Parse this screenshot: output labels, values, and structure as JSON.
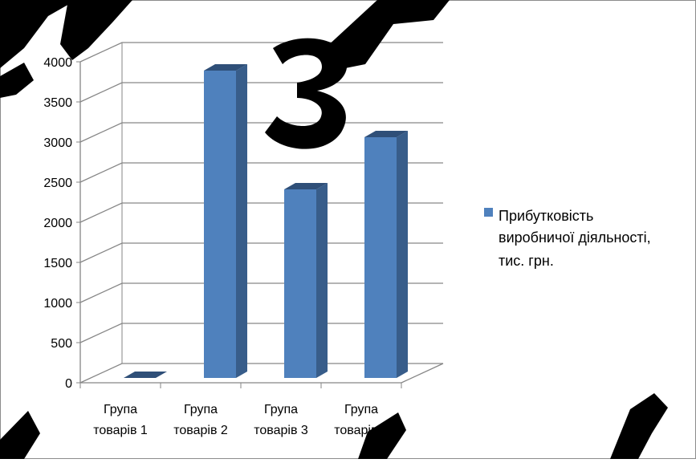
{
  "chart_data": {
    "type": "bar",
    "categories": [
      [
        "Група",
        "товарів 1"
      ],
      [
        "Група",
        "товарів 2"
      ],
      [
        "Група",
        "товарів 3"
      ],
      [
        "Група",
        "товарів 4"
      ]
    ],
    "series": [
      {
        "name": "Прибутковість виробничої діяльності, тис. грн.",
        "color": "#4f81bd",
        "values": [
          0,
          3830,
          2350,
          3000
        ]
      }
    ],
    "ylim": [
      0,
      4000
    ],
    "yticks": [
      "0",
      "500",
      "1000",
      "1500",
      "2000",
      "2500",
      "3000",
      "3500",
      "4000"
    ],
    "grid": true,
    "legend_position": "right",
    "style": "3d-column"
  },
  "legend": {
    "lines": [
      "Прибутковість",
      "виробничої діяльності,",
      "тис. грн."
    ]
  },
  "overlay": {
    "watermark_text": "ЗАКАЗ",
    "color": "#000000"
  }
}
